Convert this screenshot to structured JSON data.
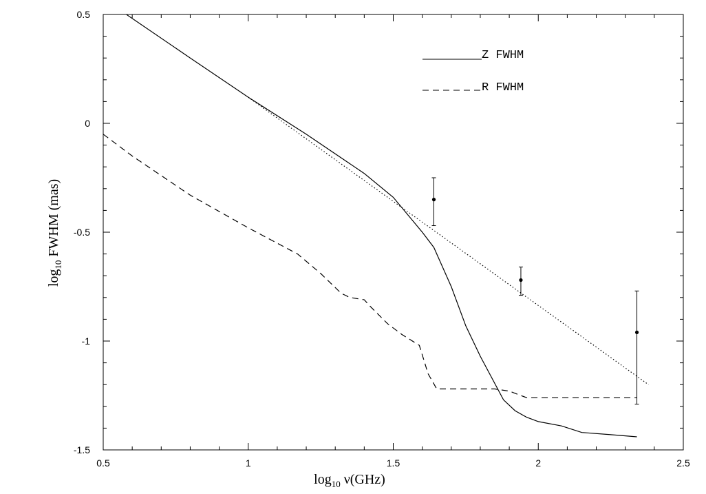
{
  "chart_data": {
    "type": "line",
    "title": "",
    "xlabel": "log10 ν(GHz)",
    "ylabel": "log10 FWHM (mas)",
    "xlim": [
      0.5,
      2.5
    ],
    "ylim": [
      -1.5,
      0.5
    ],
    "x_ticks": [
      "0.5",
      "1",
      "1.5",
      "2",
      "2.5"
    ],
    "y_ticks": [
      "0.5",
      "0",
      "-0.5",
      "-1",
      "-1.5"
    ],
    "x_tick_values": [
      0.5,
      1,
      1.5,
      2,
      2.5
    ],
    "y_tick_values": [
      0.5,
      0,
      -0.5,
      -1,
      -1.5
    ],
    "legend_position": "top-right",
    "series": [
      {
        "name": "Z FWHM",
        "style": "solid",
        "color": "#000000",
        "x": [
          0.58,
          0.8,
          1.0,
          1.2,
          1.4,
          1.5,
          1.6,
          1.64,
          1.7,
          1.75,
          1.8,
          1.88,
          1.92,
          1.96,
          2.0,
          2.08,
          2.15,
          2.25,
          2.34
        ],
        "y": [
          0.5,
          0.3,
          0.12,
          -0.05,
          -0.23,
          -0.34,
          -0.5,
          -0.57,
          -0.75,
          -0.93,
          -1.07,
          -1.27,
          -1.32,
          -1.35,
          -1.37,
          -1.39,
          -1.42,
          -1.43,
          -1.44
        ]
      },
      {
        "name": "R FWHM",
        "style": "dashed",
        "color": "#000000",
        "x": [
          0.5,
          0.6,
          0.8,
          1.0,
          1.17,
          1.25,
          1.32,
          1.35,
          1.4,
          1.42,
          1.48,
          1.53,
          1.59,
          1.62,
          1.65,
          1.85,
          1.9,
          1.96,
          2.34
        ],
        "y": [
          -0.05,
          -0.15,
          -0.33,
          -0.48,
          -0.6,
          -0.69,
          -0.78,
          -0.8,
          -0.81,
          -0.84,
          -0.92,
          -0.97,
          -1.02,
          -1.15,
          -1.22,
          -1.22,
          -1.23,
          -1.26,
          -1.26
        ]
      },
      {
        "style": "dotted",
        "color": "#000000",
        "x": [
          1.0,
          2.38
        ],
        "y": [
          0.12,
          -1.2
        ]
      }
    ],
    "error_points": [
      {
        "x": 1.64,
        "y": -0.35,
        "ymin": -0.47,
        "ymax": -0.25
      },
      {
        "x": 1.94,
        "y": -0.72,
        "ymin": -0.79,
        "ymax": -0.66
      },
      {
        "x": 2.34,
        "y": -0.96,
        "ymin": -1.29,
        "ymax": -0.77
      }
    ]
  }
}
